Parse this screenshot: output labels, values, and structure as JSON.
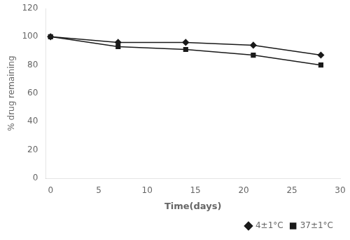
{
  "chart_data": {
    "type": "line",
    "x": [
      0,
      7,
      14,
      21,
      28
    ],
    "series": [
      {
        "name": "4±1°C",
        "color": "#1a1a1a",
        "marker": "diamond",
        "values": [
          100,
          96,
          96,
          94,
          87
        ]
      },
      {
        "name": "37±1°C",
        "color": "#1a1a1a",
        "marker": "square",
        "values": [
          100,
          93,
          91,
          87,
          80
        ]
      }
    ],
    "xlabel": "Time(days)",
    "ylabel": "% drug remaining",
    "xlim": [
      -0.5,
      30
    ],
    "ylim": [
      0,
      120
    ],
    "xticks": [
      0,
      5,
      10,
      15,
      20,
      25,
      30
    ],
    "yticks": [
      0,
      20,
      40,
      60,
      80,
      100,
      120
    ],
    "grid": false,
    "legend": "lower right"
  }
}
